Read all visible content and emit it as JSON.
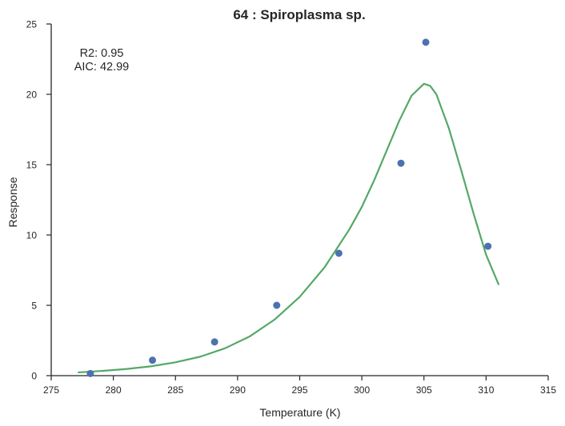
{
  "chart_data": {
    "type": "scatter",
    "title": "64 : Spiroplasma sp.",
    "xlabel": "Temperature (K)",
    "ylabel": "Response",
    "xlim": [
      275,
      315
    ],
    "ylim": [
      0,
      25
    ],
    "xticks": [
      275,
      280,
      285,
      290,
      295,
      300,
      305,
      310,
      315
    ],
    "yticks": [
      0,
      5,
      10,
      15,
      20,
      25
    ],
    "grid": false,
    "annotations": [
      "R2: 0.95",
      "AIC: 42.99"
    ],
    "series": [
      {
        "type": "scatter",
        "color": "#4c72b0",
        "x": [
          278.15,
          283.15,
          288.15,
          293.15,
          298.15,
          303.15,
          305.15,
          310.15
        ],
        "y": [
          0.15,
          1.1,
          2.4,
          5.0,
          8.7,
          15.1,
          23.7,
          9.2
        ]
      },
      {
        "type": "line",
        "color": "#55a868",
        "x": [
          277.2,
          279,
          281,
          283,
          285,
          287,
          289,
          291,
          293,
          295,
          297,
          299,
          300,
          301,
          302,
          303,
          304,
          305,
          305.5,
          306,
          307,
          308,
          309,
          310,
          311
        ],
        "y": [
          0.23,
          0.33,
          0.47,
          0.66,
          0.95,
          1.35,
          1.95,
          2.8,
          4.0,
          5.6,
          7.7,
          10.4,
          12.0,
          13.9,
          16.0,
          18.1,
          19.9,
          20.75,
          20.6,
          20.0,
          17.6,
          14.6,
          11.5,
          8.6,
          6.5
        ]
      }
    ]
  }
}
